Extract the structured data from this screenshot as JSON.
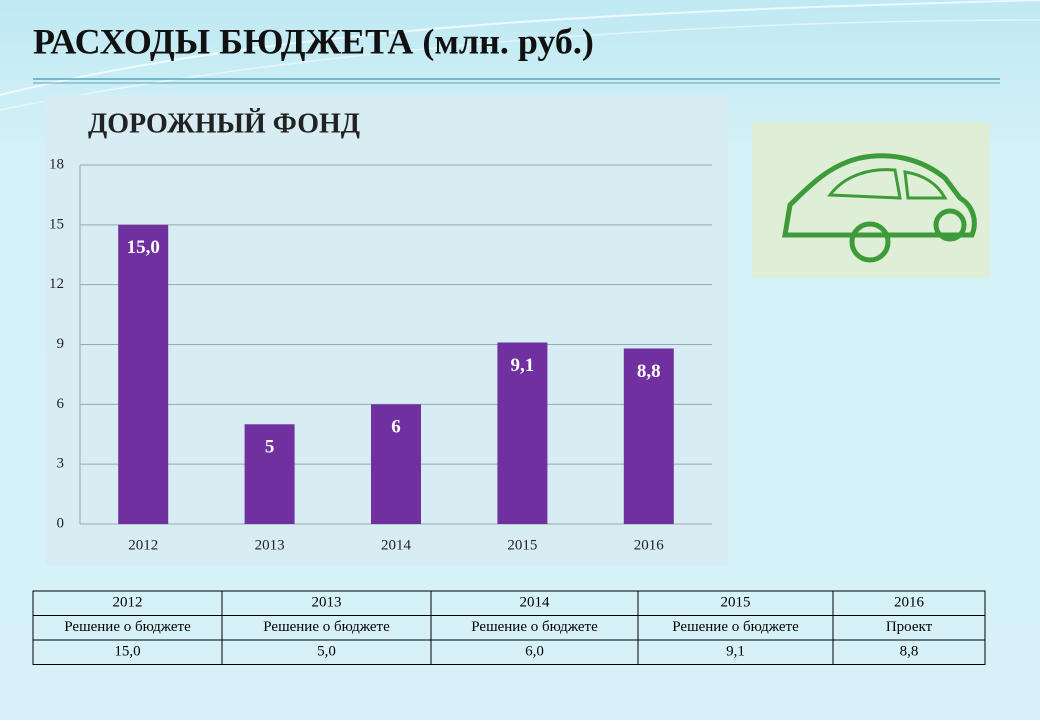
{
  "header": {
    "title": "РАСХОДЫ БЮДЖЕТА (млн. руб.)"
  },
  "chart_data": {
    "type": "bar",
    "title": "ДОРОЖНЫЙ ФОНД",
    "categories": [
      "2012",
      "2013",
      "2014",
      "2015",
      "2016"
    ],
    "values": [
      15,
      5,
      6,
      9.1,
      8.8
    ],
    "value_labels": [
      "15,0",
      "5",
      "6",
      "9,1",
      "8,8"
    ],
    "color": "#7030a0",
    "ylim": [
      0,
      18
    ],
    "yticks": [
      0,
      3,
      6,
      9,
      12,
      15,
      18
    ],
    "grid": true
  },
  "table": {
    "rows": [
      [
        "2012",
        "2013",
        "2014",
        "2015",
        "2016"
      ],
      [
        "Решение о бюджете",
        "Решение о бюджете",
        "Решение о бюджете",
        "Решение о бюджете",
        "Проект"
      ],
      [
        "15,0",
        "5,0",
        "6,0",
        "9,1",
        "8,8"
      ]
    ]
  }
}
